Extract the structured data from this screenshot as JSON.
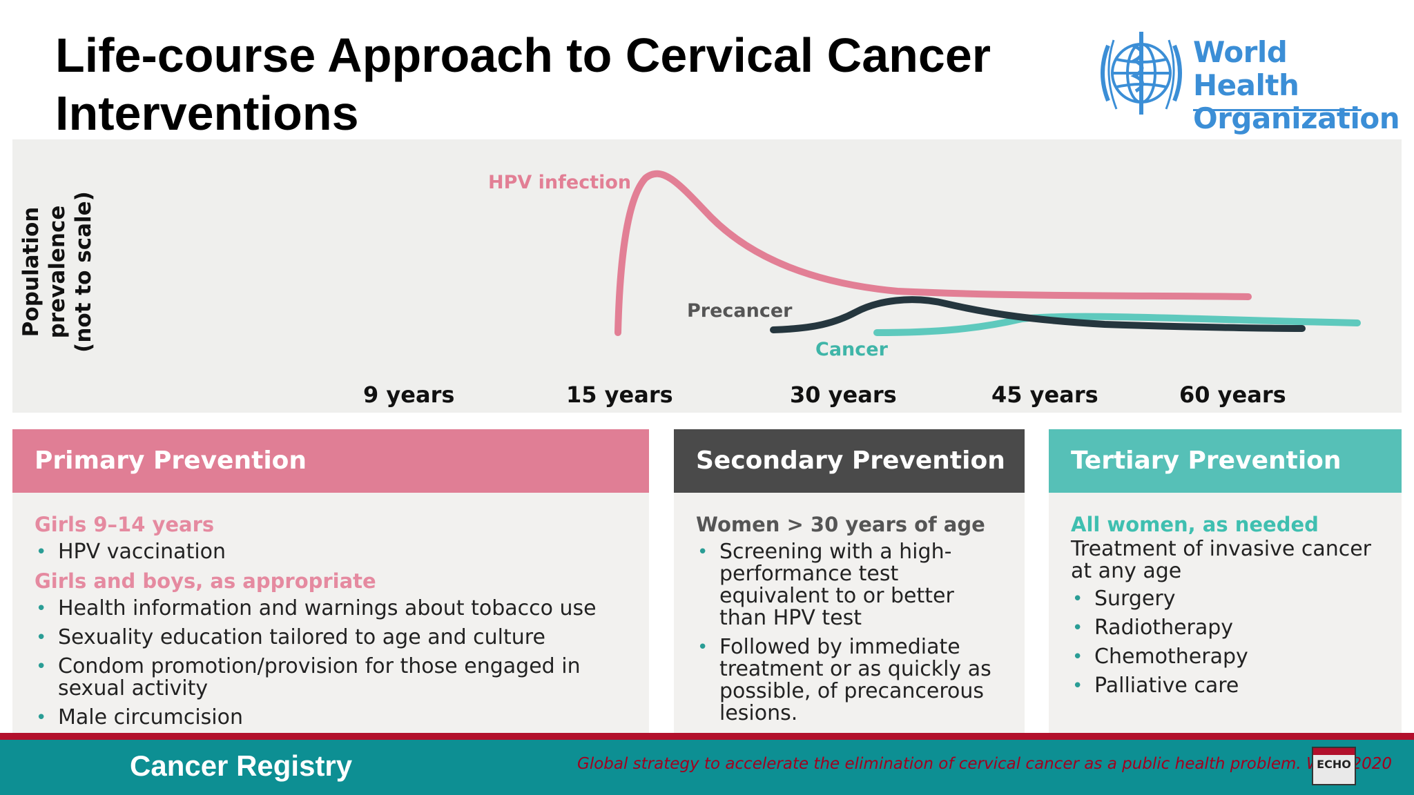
{
  "title": "Life-course Approach to Cervical Cancer Interventions",
  "logo": {
    "line1": "World Health",
    "line2": "Organization",
    "icon": "who-emblem-icon",
    "color": "#3b8ed6"
  },
  "chart": {
    "ylabel_line1": "Population prevalence",
    "ylabel_line2": "(not to scale)",
    "x_ticks": [
      "9 years",
      "15 years",
      "30 years",
      "45 years",
      "60 years"
    ],
    "curve_labels": {
      "hpv": "HPV infection",
      "precancer": "Precancer",
      "cancer": "Cancer"
    },
    "colors": {
      "hpv": "#e27f95",
      "precancer": "#25363e",
      "cancer": "#5ec9bd",
      "panel": "#efefed"
    }
  },
  "boxes": {
    "primary": {
      "heading": "Primary Prevention",
      "group1": "Girls 9–14 years",
      "group1_items": [
        "HPV vaccination"
      ],
      "group2": "Girls and boys, as appropriate",
      "group2_items": [
        "Health information and warnings about tobacco use",
        "Sexuality education tailored to age and culture",
        "Condom promotion/provision for those engaged in sexual activity",
        "Male circumcision"
      ],
      "color": "#e07e95"
    },
    "secondary": {
      "heading": "Secondary Prevention",
      "group": "Women > 30 years of age",
      "items": [
        "Screening with a high-performance test equivalent to or better than HPV test",
        "Followed by immediate treatment or as quickly as possible, of precancerous lesions."
      ],
      "color": "#4a4a4a"
    },
    "tertiary": {
      "heading": "Tertiary Prevention",
      "group": "All women, as needed",
      "intro": "Treatment of invasive cancer at any age",
      "items": [
        "Surgery",
        "Radiotherapy",
        "Chemotherapy",
        "Palliative care"
      ],
      "color": "#56c0b7"
    }
  },
  "footer": {
    "title": "Cancer Registry",
    "citation": "Global strategy to accelerate the elimination of cervical cancer as a public health problem. WHO 2020",
    "badge": "ECHO",
    "bar_color": "#0d8f93",
    "stripe_color": "#b2102c"
  }
}
